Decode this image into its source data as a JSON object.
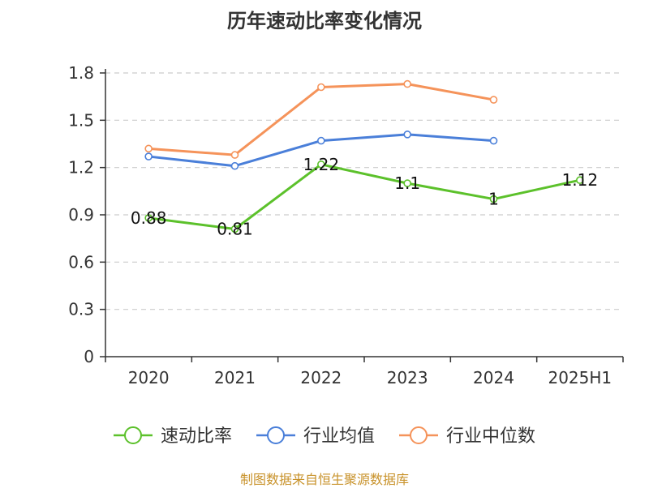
{
  "chart_data": {
    "type": "line",
    "title": "历年速动比率变化情况",
    "categories": [
      "2020",
      "2021",
      "2022",
      "2023",
      "2024",
      "2025H1"
    ],
    "ylim": [
      0,
      1.8
    ],
    "yticks": [
      "0",
      "0.3",
      "0.6",
      "0.9",
      "1.2",
      "1.5",
      "1.8"
    ],
    "grid": true,
    "legend_position": "bottom",
    "series": [
      {
        "name": "速动比率",
        "color": "#5cc12b",
        "values": [
          0.88,
          0.81,
          1.22,
          1.1,
          1.0,
          1.12
        ],
        "labels": [
          "0.88",
          "0.81",
          "1.22",
          "1.1",
          "1",
          "1.12"
        ]
      },
      {
        "name": "行业均值",
        "color": "#4a7fd9",
        "values": [
          1.27,
          1.21,
          1.37,
          1.41,
          1.37,
          null
        ]
      },
      {
        "name": "行业中位数",
        "color": "#f5935a",
        "values": [
          1.32,
          1.28,
          1.71,
          1.73,
          1.63,
          null
        ]
      }
    ],
    "source": "制图数据来自恒生聚源数据库"
  }
}
